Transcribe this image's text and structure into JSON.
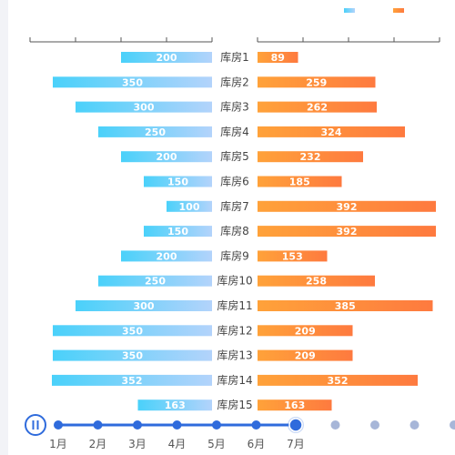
{
  "chart_data": {
    "type": "bar",
    "layout": "butterfly",
    "title": "",
    "categories": [
      "库房1",
      "库房2",
      "库房3",
      "库房4",
      "库房5",
      "库房6",
      "库房7",
      "库房8",
      "库房9",
      "库房10",
      "库房11",
      "库房12",
      "库房13",
      "库房14",
      "库房15"
    ],
    "series": [
      {
        "side": "left",
        "values": [
          200,
          350,
          300,
          250,
          200,
          150,
          100,
          150,
          200,
          250,
          300,
          350,
          350,
          352,
          163
        ],
        "xlim": [
          0,
          400
        ],
        "color_from": "#4ad1fa",
        "color_to": "#b3d3fb"
      },
      {
        "side": "right",
        "values": [
          89,
          259,
          262,
          324,
          232,
          185,
          392,
          392,
          153,
          258,
          385,
          209,
          209,
          352,
          163
        ],
        "xlim": [
          0,
          400
        ],
        "color_from": "#ffa23a",
        "color_to": "#fe7a3f"
      }
    ],
    "legend_position": "top-right",
    "grid": false
  },
  "timeline": {
    "labels": [
      "1月",
      "2月",
      "3月",
      "4月",
      "5月",
      "6月",
      "7月"
    ],
    "total_points": 11,
    "current_index": 6,
    "playing": true,
    "colors": {
      "active": "#2f6bdc",
      "inactive": "#a7b6d8"
    }
  }
}
